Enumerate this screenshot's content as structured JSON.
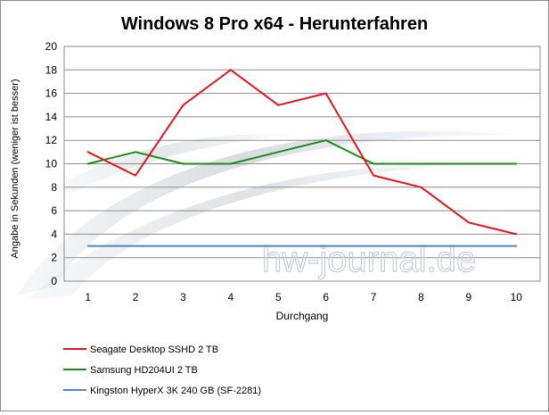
{
  "chart_data": {
    "type": "line",
    "title": "Windows 8 Pro x64 - Herunterfahren",
    "xlabel": "Durchgang",
    "ylabel": "Angabe in Sekunden  (weniger ist besser)",
    "x": [
      1,
      2,
      3,
      4,
      5,
      6,
      7,
      8,
      9,
      10
    ],
    "ylim": [
      0,
      20
    ],
    "yticks": [
      0,
      2,
      4,
      6,
      8,
      10,
      12,
      14,
      16,
      18,
      20
    ],
    "grid": true,
    "legend_position": "bottom",
    "watermark": "hw-journal.de",
    "series": [
      {
        "name": "Seagate Desktop SSHD 2 TB",
        "color": "#e8141b",
        "values": [
          11,
          9,
          15,
          18,
          15,
          16,
          9,
          8,
          5,
          4
        ]
      },
      {
        "name": "Samsung HD204UI 2 TB",
        "color": "#1a8c1a",
        "values": [
          10,
          11,
          10,
          10,
          11,
          12,
          10,
          10,
          10,
          10
        ]
      },
      {
        "name": "Kingston HyperX 3K 240 GB (SF-2281)",
        "color": "#4a86c8",
        "values": [
          3,
          3,
          3,
          3,
          3,
          3,
          3,
          3,
          3,
          3
        ]
      }
    ]
  }
}
